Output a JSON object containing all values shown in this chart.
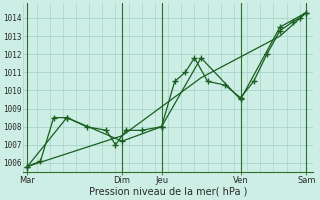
{
  "xlabel": "Pression niveau de la mer( hPa )",
  "background_color": "#cceee4",
  "grid_color": "#aad4c8",
  "line_color": "#1a5e20",
  "axis_color": "#2d6e2d",
  "ylim": [
    1005.5,
    1014.8
  ],
  "xlim": [
    0,
    22
  ],
  "yticks": [
    1006,
    1007,
    1008,
    1009,
    1010,
    1011,
    1012,
    1013,
    1014
  ],
  "xtick_labels": [
    "Mar",
    "Dim",
    "Jeu",
    "Ven",
    "Sam"
  ],
  "xtick_positions": [
    0.3,
    7.5,
    10.5,
    16.5,
    21.5
  ],
  "vline_positions": [
    0.3,
    7.5,
    10.5,
    16.5,
    21.5
  ],
  "line1_x": [
    0.3,
    1.3,
    2.3,
    3.3,
    4.8,
    6.3,
    7.0,
    7.8,
    9.0,
    10.5,
    11.5,
    12.3,
    13.0,
    14.0,
    15.3,
    16.5,
    17.5,
    18.5,
    19.5,
    20.5,
    21.0,
    21.5
  ],
  "line1_y": [
    1005.8,
    1006.1,
    1008.5,
    1008.5,
    1008.0,
    1007.8,
    1007.0,
    1007.8,
    1007.8,
    1008.0,
    1010.5,
    1011.0,
    1011.8,
    1010.5,
    1010.3,
    1009.6,
    1010.5,
    1012.0,
    1013.3,
    1013.8,
    1014.0,
    1014.3
  ],
  "line2_x": [
    0.3,
    3.3,
    7.5,
    10.5,
    13.5,
    16.5,
    19.5,
    21.5
  ],
  "line2_y": [
    1005.8,
    1008.5,
    1007.2,
    1008.0,
    1011.8,
    1009.5,
    1013.5,
    1014.3
  ],
  "line3_x": [
    0.3,
    7.5,
    13.5,
    19.5,
    21.5
  ],
  "line3_y": [
    1005.8,
    1007.5,
    1010.7,
    1013.0,
    1014.3
  ]
}
